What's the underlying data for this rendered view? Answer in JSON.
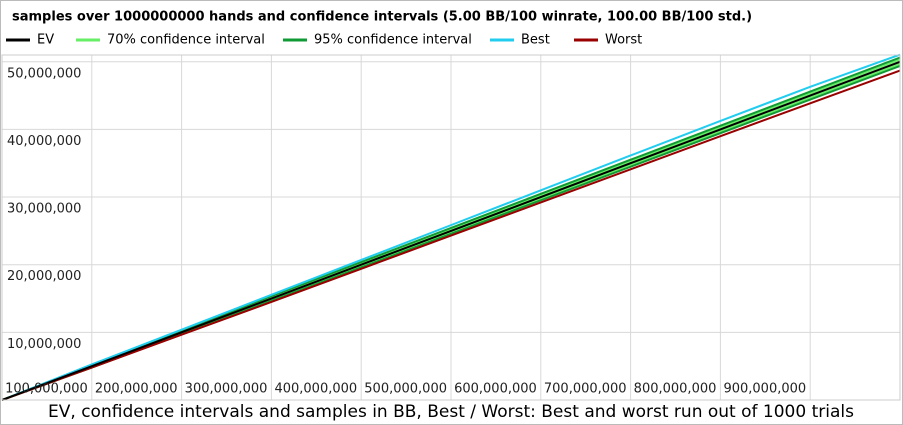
{
  "chart_data": {
    "type": "line",
    "title": "samples over 1000000000 hands and confidence intervals (5.00 BB/100 winrate, 100.00 BB/100 std.)",
    "caption": "EV, confidence intervals and samples in BB, Best / Worst: Best and worst run out of 1000 trials",
    "x": [
      0,
      100000000,
      200000000,
      300000000,
      400000000,
      500000000,
      600000000,
      700000000,
      800000000,
      900000000,
      1000000000
    ],
    "xlim": [
      0,
      1000000000
    ],
    "ylim": [
      0,
      51000000
    ],
    "grid": true,
    "legend": "top",
    "xticks": [
      {
        "value": 100000000,
        "label": "100,000,000"
      },
      {
        "value": 200000000,
        "label": "200,000,000"
      },
      {
        "value": 300000000,
        "label": "300,000,000"
      },
      {
        "value": 400000000,
        "label": "400,000,000"
      },
      {
        "value": 500000000,
        "label": "500,000,000"
      },
      {
        "value": 600000000,
        "label": "600,000,000"
      },
      {
        "value": 700000000,
        "label": "700,000,000"
      },
      {
        "value": 800000000,
        "label": "800,000,000"
      },
      {
        "value": 900000000,
        "label": "900,000,000"
      }
    ],
    "yticks": [
      {
        "value": 10000000,
        "label": "10,000,000"
      },
      {
        "value": 20000000,
        "label": "20,000,000"
      },
      {
        "value": 30000000,
        "label": "30,000,000"
      },
      {
        "value": 40000000,
        "label": "40,000,000"
      },
      {
        "value": 50000000,
        "label": "50,000,000"
      }
    ],
    "series": [
      {
        "name": "EV",
        "color": "#000000",
        "values": [
          0,
          5000000,
          10000000,
          15000000,
          20000000,
          25000000,
          30000000,
          35000000,
          40000000,
          45000000,
          50000000
        ]
      },
      {
        "name": "70% confidence interval",
        "color": "#66ee66",
        "lower": [
          0,
          4896000,
          9853000,
          14820000,
          19792000,
          24767000,
          29745000,
          34725000,
          39706000,
          44688000,
          49671000
        ],
        "upper": [
          0,
          5104000,
          10147000,
          15180000,
          20208000,
          25233000,
          30255000,
          35275000,
          40294000,
          45312000,
          50329000
        ]
      },
      {
        "name": "95% confidence interval",
        "color": "#119933",
        "lower": [
          0,
          4804000,
          9723000,
          14661000,
          19608000,
          24562000,
          29520000,
          34481000,
          39446000,
          44412000,
          49380000
        ],
        "upper": [
          0,
          5196000,
          10277000,
          15339000,
          20392000,
          25438000,
          30480000,
          35519000,
          40554000,
          45588000,
          50620000
        ]
      },
      {
        "name": "Best",
        "color": "#22ccee",
        "values": [
          0,
          5250000,
          10400000,
          15550000,
          20700000,
          25850000,
          31000000,
          36150000,
          41250000,
          46300000,
          51050000
        ]
      },
      {
        "name": "Worst",
        "color": "#990000",
        "values": [
          0,
          4800000,
          9650000,
          14500000,
          19400000,
          24300000,
          29200000,
          34100000,
          39000000,
          43850000,
          48700000
        ]
      }
    ]
  }
}
